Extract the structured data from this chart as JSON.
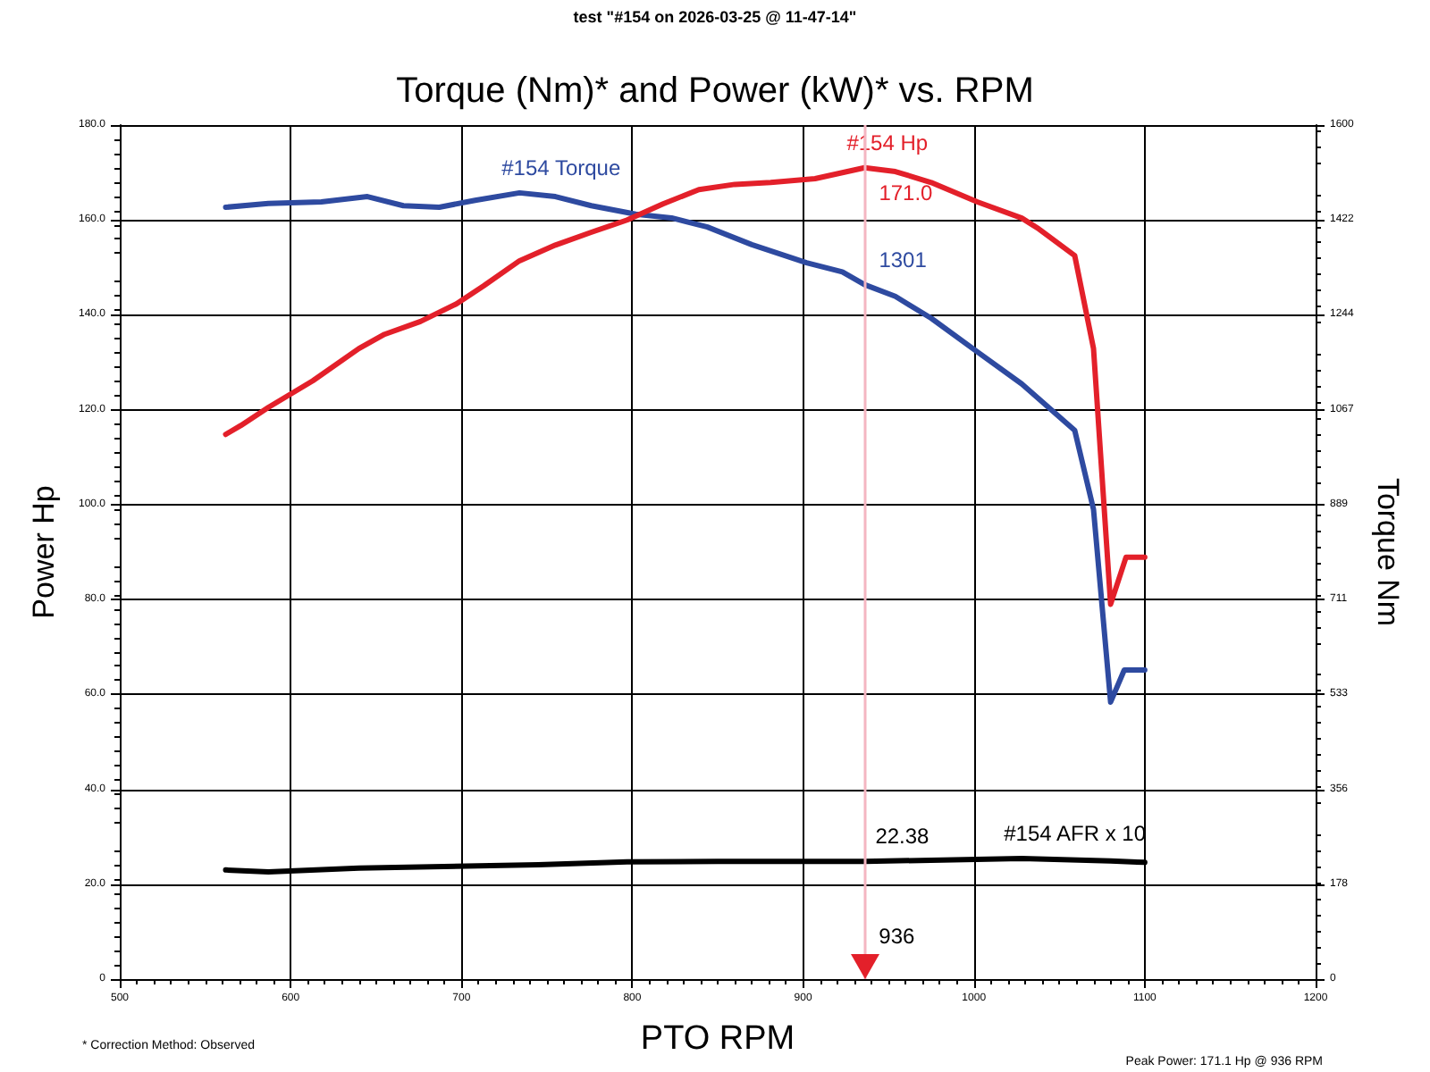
{
  "chart_data": {
    "type": "line",
    "title": "Torque (Nm)* and Power (kW)* vs. RPM",
    "subtitle": "test \"#154 on 2026-03-25 @ 11-47-14\"",
    "xlabel": "PTO RPM",
    "ylabel": "Power Hp",
    "y2label": "Torque Nm",
    "xlim": [
      500,
      1200
    ],
    "xticks": [
      500,
      600,
      700,
      800,
      900,
      1000,
      1100,
      1200
    ],
    "ylim": [
      0,
      180
    ],
    "yticks": [
      0,
      {
        "value": 20,
        "label": "20.0"
      },
      {
        "value": 40,
        "label": "40.0"
      },
      {
        "value": 60,
        "label": "60.0"
      },
      {
        "value": 80,
        "label": "80.0"
      },
      {
        "value": 100,
        "label": "100.0"
      },
      {
        "value": 120,
        "label": "120.0"
      },
      {
        "value": 140,
        "label": "140.0"
      },
      {
        "value": 160,
        "label": "160.0"
      },
      {
        "value": 180,
        "label": "180.0"
      }
    ],
    "y2lim": [
      0,
      1600
    ],
    "y2ticks": [
      0,
      {
        "value": 177.8,
        "label": "178"
      },
      {
        "value": 355.6,
        "label": "356"
      },
      {
        "value": 533.3,
        "label": "533"
      },
      {
        "value": 711.1,
        "label": "711"
      },
      {
        "value": 888.9,
        "label": "889"
      },
      {
        "value": 1066.7,
        "label": "1067"
      },
      {
        "value": 1244.4,
        "label": "1244"
      },
      {
        "value": 1422.2,
        "label": "1422"
      },
      1600
    ],
    "grid": true,
    "legend": false,
    "marker": "none",
    "line_style": "solid",
    "series": [
      {
        "name": "#154 Torque",
        "color": "#2e4aa0",
        "axis": "y2",
        "x": [
          562,
          587,
          618,
          645,
          666,
          687,
          708,
          734,
          755,
          776,
          802,
          823,
          844,
          870,
          902,
          923,
          936,
          954,
          975,
          1002,
          1028,
          1059,
          1070,
          1080,
          1088,
          1100
        ],
        "values": [
          1446,
          1453,
          1456,
          1466,
          1449,
          1446,
          1459,
          1473,
          1466,
          1449,
          1433,
          1426,
          1409,
          1376,
          1342,
          1325,
          1301,
          1279,
          1238,
          1175,
          1115,
          1028,
          880,
          519,
          579,
          579
        ],
        "value_labels": [
          null,
          null,
          null,
          null,
          null,
          null,
          null,
          null,
          null,
          null,
          null,
          null,
          null,
          null,
          null,
          null,
          "1301",
          null,
          null,
          null,
          null,
          null,
          null,
          null,
          null,
          null
        ]
      },
      {
        "name": "#154 Hp",
        "color": "#e3202a",
        "x": [
          562,
          571,
          587,
          613,
          640,
          655,
          676,
          697,
          713,
          734,
          755,
          776,
          797,
          818,
          839,
          860,
          881,
          907,
          936,
          954,
          975,
          1002,
          1028,
          1038,
          1059,
          1070,
          1080,
          1089,
          1100
        ],
        "values": [
          114.8,
          116.7,
          120.5,
          126.1,
          132.9,
          135.9,
          138.6,
          142.3,
          146.1,
          151.4,
          154.7,
          157.4,
          160,
          163.4,
          166.4,
          167.5,
          167.9,
          168.7,
          171.0,
          170.2,
          167.9,
          163.8,
          160.4,
          158.1,
          152.5,
          132.9,
          79,
          88.9,
          88.9
        ],
        "value_labels": [
          null,
          null,
          null,
          null,
          null,
          null,
          null,
          null,
          null,
          null,
          null,
          null,
          null,
          null,
          null,
          null,
          null,
          null,
          "171.0",
          null,
          null,
          null,
          null,
          null,
          null,
          null,
          null,
          null,
          null
        ]
      },
      {
        "name": "#154 AFR x 10",
        "color": "#000000",
        "x": [
          562,
          587,
          640,
          745,
          797,
          850,
          936,
          1028,
          1080,
          1100
        ],
        "values": [
          23.0,
          22.6,
          23.4,
          24.1,
          24.7,
          24.8,
          24.8,
          25.4,
          24.9,
          24.6
        ]
      }
    ],
    "ref_lines": [
      {
        "axis": "x",
        "value": 936,
        "label": "936",
        "color": "#f4b6c2"
      }
    ],
    "annotations": [
      "22.38",
      "* Correction Method: Observed",
      "Peak Power: 171.1 Hp @ 936 RPM"
    ]
  }
}
